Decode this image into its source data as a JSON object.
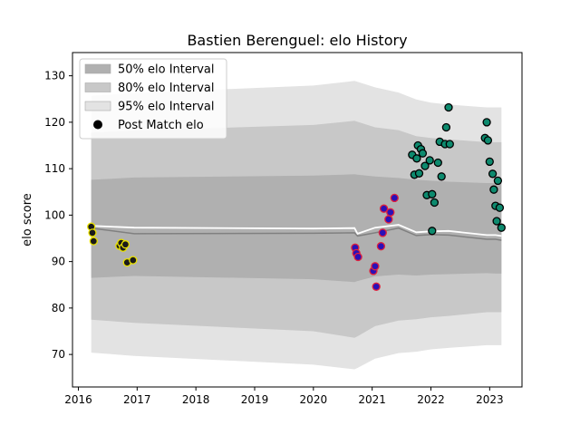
{
  "chart_data": {
    "type": "scatter",
    "title": "Bastien Berenguel: elo History",
    "xlabel": "",
    "ylabel": "elo score",
    "xlim": [
      2015.9,
      2023.55
    ],
    "ylim": [
      63,
      135
    ],
    "x_ticks": [
      2016,
      2017,
      2018,
      2019,
      2020,
      2021,
      2022,
      2023
    ],
    "x_tick_labels": [
      "2016",
      "2017",
      "2018",
      "2019",
      "2020",
      "2021",
      "2022",
      "2023"
    ],
    "y_ticks": [
      70,
      80,
      90,
      100,
      110,
      120,
      130
    ],
    "y_tick_labels": [
      "70",
      "80",
      "90",
      "100",
      "110",
      "120",
      "130"
    ],
    "grid": false,
    "legend_position": "top-left",
    "legend": [
      {
        "label": "50% elo Interval",
        "kind": "band",
        "color": "#b0b0b0"
      },
      {
        "label": "80% elo Interval",
        "kind": "band",
        "color": "#c8c8c8"
      },
      {
        "label": "95% elo Interval",
        "kind": "band",
        "color": "#e3e3e3"
      },
      {
        "label": "Post Match elo",
        "kind": "marker",
        "color": "#000000"
      }
    ],
    "bands": {
      "x": [
        2016.22,
        2016.95,
        2020.0,
        2020.7,
        2020.75,
        2021.05,
        2021.45,
        2021.75,
        2022.0,
        2022.3,
        2022.95,
        2023.1,
        2023.2
      ],
      "center": [
        97.7,
        97.3,
        97.1,
        97.2,
        96.0,
        97.3,
        97.9,
        96.3,
        96.5,
        96.6,
        95.7,
        95.7,
        95.5
      ],
      "mean_line": [
        97.2,
        96.0,
        96.1,
        96.2,
        95.5,
        96.2,
        97.2,
        95.6,
        95.8,
        95.7,
        94.8,
        94.8,
        94.6
      ],
      "p50": {
        "lower": [
          86.5,
          86.9,
          86.2,
          85.6,
          85.8,
          86.8,
          87.2,
          87.0,
          87.2,
          87.3,
          87.5,
          87.4,
          87.4
        ],
        "upper": [
          107.6,
          108.1,
          108.5,
          108.8,
          108.7,
          108.3,
          108.0,
          107.6,
          107.4,
          107.2,
          106.9,
          106.9,
          106.9
        ]
      },
      "p80": {
        "lower": [
          77.5,
          76.8,
          75.0,
          73.6,
          73.9,
          76.1,
          77.3,
          77.6,
          78.0,
          78.3,
          79.1,
          79.1,
          79.1
        ],
        "upper": [
          117.8,
          118.2,
          119.4,
          120.3,
          120.1,
          118.9,
          118.3,
          117.0,
          116.6,
          116.3,
          115.7,
          115.7,
          115.7
        ]
      },
      "p95": {
        "lower": [
          70.4,
          69.7,
          67.8,
          66.8,
          67.1,
          69.1,
          70.3,
          70.6,
          71.1,
          71.4,
          72.0,
          72.0,
          72.0
        ],
        "upper": [
          125.7,
          126.3,
          127.9,
          128.9,
          128.7,
          127.5,
          126.4,
          124.9,
          124.2,
          123.8,
          123.2,
          123.2,
          123.2
        ]
      }
    },
    "series": [
      {
        "face": "#1a1a1a",
        "edge": "#e8e000",
        "x": [
          2016.22,
          2016.24,
          2016.26,
          2016.7,
          2016.73,
          2016.76,
          2016.8,
          2016.83,
          2016.93
        ],
        "y": [
          97.5,
          96.2,
          94.4,
          93.4,
          94.0,
          93.0,
          93.7,
          89.8,
          90.3
        ]
      },
      {
        "face": "#2a10b8",
        "edge": "#e0203c",
        "x": [
          2020.71,
          2020.73,
          2020.76,
          2021.02,
          2021.05,
          2021.07,
          2021.15,
          2021.18,
          2021.2,
          2021.28,
          2021.31,
          2021.38
        ],
        "y": [
          93.0,
          91.8,
          91.0,
          88.0,
          89.0,
          84.6,
          93.3,
          96.2,
          101.4,
          99.1,
          100.6,
          103.7
        ]
      },
      {
        "face": "#0d8a6e",
        "edge": "#000000",
        "x": [
          2021.68,
          2021.72,
          2021.76,
          2021.78,
          2021.8,
          2021.83,
          2021.86,
          2021.9,
          2021.93,
          2021.98,
          2022.02,
          2022.06,
          2022.12,
          2022.15,
          2022.18,
          2022.24,
          2022.26,
          2022.3
        ],
        "y": [
          113.0,
          108.7,
          112.2,
          115.0,
          109.0,
          114.2,
          113.3,
          110.6,
          104.3,
          111.8,
          104.5,
          102.7,
          111.3,
          115.8,
          108.3,
          115.3,
          118.9,
          123.2
        ]
      },
      {
        "face": "#0d8a6e",
        "edge": "#000000",
        "x": [
          2022.02,
          2022.32,
          2022.92,
          2022.95,
          2022.97,
          2023.0,
          2023.05,
          2023.07,
          2023.1,
          2023.12,
          2023.14,
          2023.17,
          2023.2
        ],
        "y": [
          96.6,
          115.3,
          116.6,
          120.0,
          116.1,
          111.5,
          108.9,
          105.5,
          102.0,
          98.7,
          107.4,
          101.6,
          97.3
        ]
      }
    ]
  }
}
